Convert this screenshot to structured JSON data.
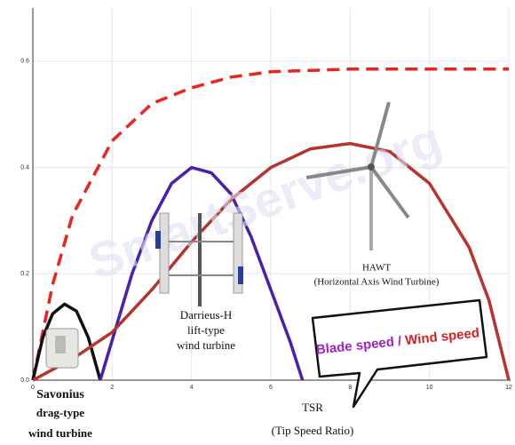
{
  "chart_data": {
    "type": "line",
    "series": [
      {
        "color": "#e8251f",
        "style": "dashed",
        "x": [
          0,
          0.5,
          1,
          2,
          3,
          4,
          5,
          6,
          8,
          10,
          12
        ],
        "values": [
          0,
          0.18,
          0.31,
          0.45,
          0.52,
          0.55,
          0.57,
          0.58,
          0.585,
          0.585,
          0.585
        ]
      },
      {
        "color": "#111111",
        "style": "solid",
        "x": [
          0,
          0.25,
          0.5,
          0.8,
          1.1,
          1.4,
          1.7
        ],
        "values": [
          0,
          0.08,
          0.125,
          0.143,
          0.13,
          0.08,
          0
        ]
      },
      {
        "color": "#4a1fb0",
        "style": "solid",
        "x": [
          1.7,
          2.5,
          3,
          3.5,
          4,
          4.5,
          5,
          5.5,
          6,
          6.5,
          6.8
        ],
        "values": [
          0,
          0.2,
          0.3,
          0.37,
          0.4,
          0.39,
          0.35,
          0.27,
          0.17,
          0.07,
          0
        ]
      },
      {
        "color": "#b8332b",
        "style": "solid",
        "x": [
          0,
          1,
          2,
          3,
          4,
          5,
          6,
          7,
          8,
          9,
          10,
          11,
          11.5,
          12
        ],
        "values": [
          0,
          0.04,
          0.09,
          0.17,
          0.26,
          0.34,
          0.4,
          0.435,
          0.445,
          0.43,
          0.37,
          0.25,
          0.15,
          0
        ]
      }
    ],
    "xlim": [
      0,
      12
    ],
    "xticks": [
      0,
      2,
      4,
      6,
      8,
      10,
      12
    ],
    "ylim": [
      0,
      0.7
    ],
    "yticks": [
      {
        "value": 0,
        "label": "0.0"
      },
      0.2,
      0.4,
      0.6
    ],
    "grid": true,
    "xlabel": [
      "TSR",
      "(Tip Speed Ratio)"
    ],
    "annotations": [
      "Savonius",
      "drag-type",
      "wind turbine",
      "Darrieus-H",
      "lift-type",
      "wind turbine",
      "HAWT",
      "(Horizontal Axis Wind Turbine)",
      "Blade speed /",
      "Wind speed",
      "SmartServe.org"
    ]
  }
}
